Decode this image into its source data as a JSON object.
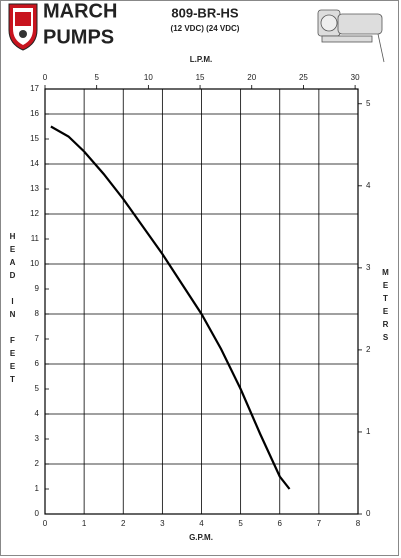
{
  "header": {
    "brand": [
      "MARCH",
      "PUMPS"
    ],
    "model": "809-BR-HS",
    "voltage": "(12 VDC) (24 VDC)"
  },
  "chart_data": {
    "type": "line",
    "x_label": "G.P.M.",
    "x2_label": "L.P.M.",
    "y_label": "HEAD IN FEET",
    "y2_label": "METERS",
    "x": [
      0.15,
      0.6,
      1,
      1.5,
      2,
      2.5,
      3,
      3.5,
      4,
      4.5,
      5,
      5.5,
      6,
      6.25
    ],
    "series": [
      {
        "name": "809-BR-HS",
        "color": "#000000",
        "values": [
          15.5,
          15.1,
          14.5,
          13.6,
          12.6,
          11.5,
          10.4,
          9.2,
          8,
          6.6,
          5,
          3.2,
          1.5,
          1
        ]
      }
    ],
    "xlim": [
      0,
      8
    ],
    "xticks": [
      0,
      1,
      2,
      3,
      4,
      5,
      6,
      7,
      8
    ],
    "x2lim": [
      0,
      30.28
    ],
    "x2ticks": [
      0,
      5,
      10,
      15,
      20,
      25,
      30
    ],
    "ylim": [
      0,
      17
    ],
    "yticks": [
      0,
      1,
      2,
      3,
      4,
      5,
      6,
      7,
      8,
      9,
      10,
      11,
      12,
      13,
      14,
      15,
      16,
      17
    ],
    "y2lim": [
      0,
      5.18
    ],
    "y2ticks": [
      0,
      1,
      2,
      3,
      4,
      5
    ],
    "grid": true
  }
}
